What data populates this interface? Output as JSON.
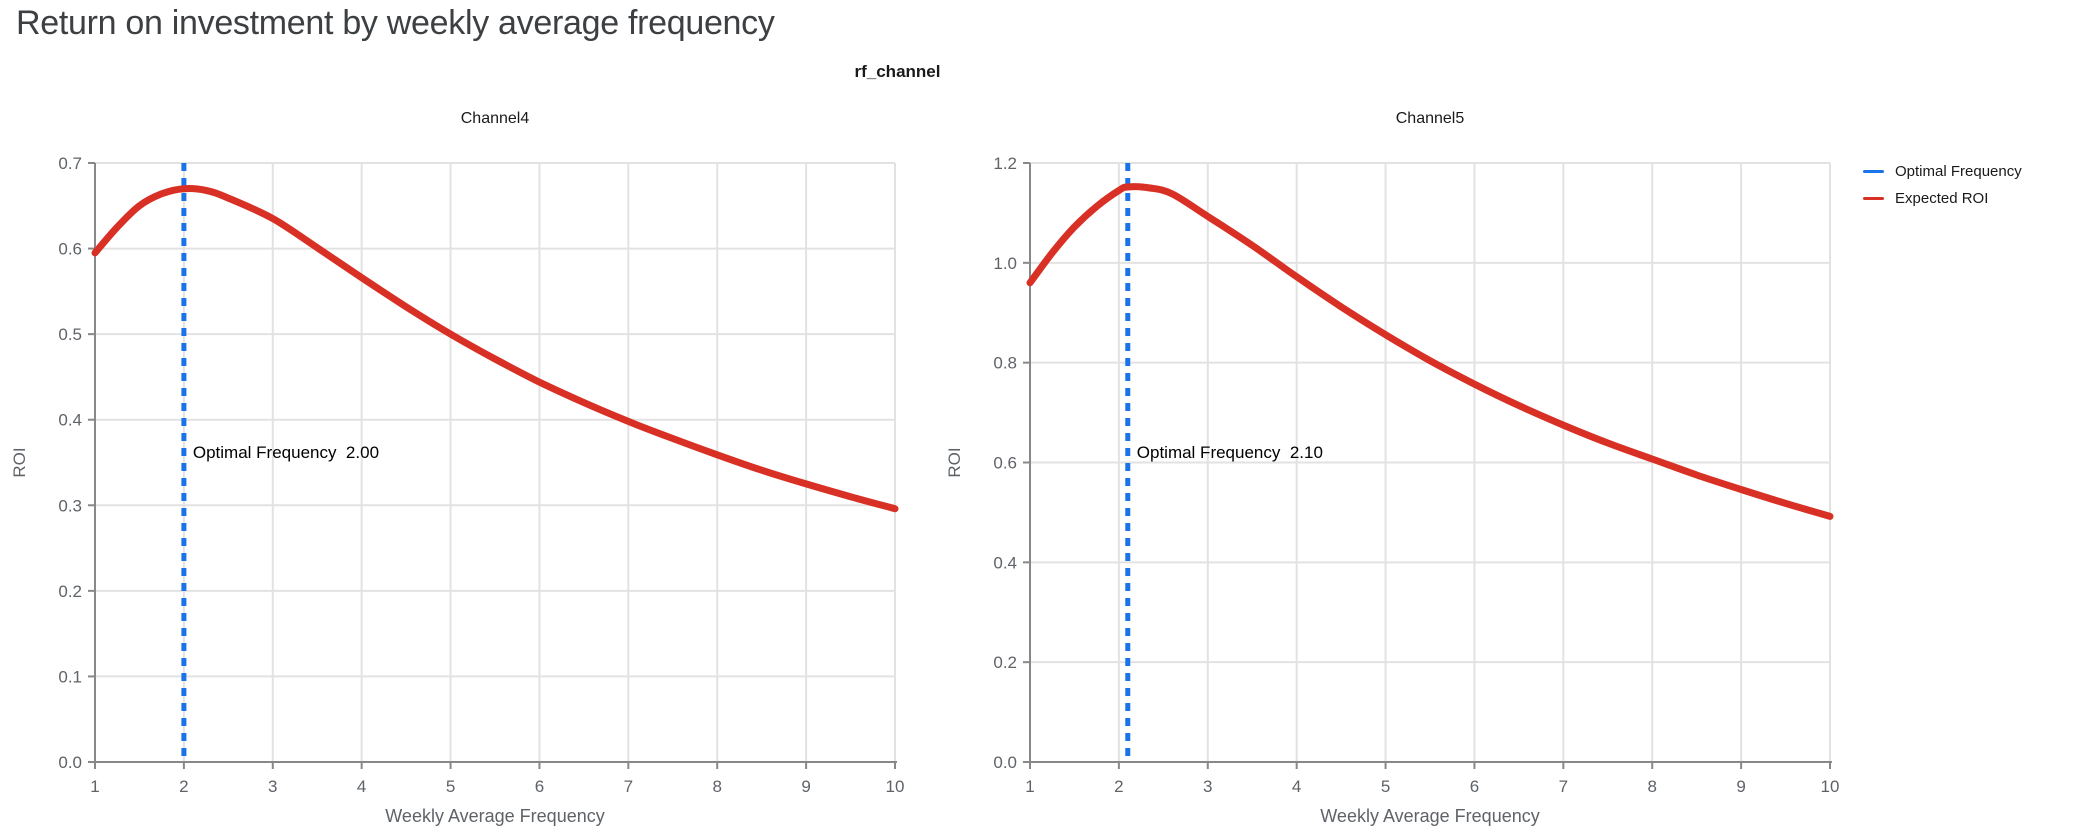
{
  "page": {
    "title": "Return on investment by weekly average frequency"
  },
  "figure": {
    "title": "rf_channel",
    "legend": {
      "items": [
        {
          "label": "Optimal Frequency",
          "color": "#1a73e8"
        },
        {
          "label": "Expected ROI",
          "color": "#d93025"
        }
      ]
    }
  },
  "style": {
    "accent_blue": "#1a73e8",
    "accent_red": "#d93025",
    "page_title_color": "#3c4043",
    "axis_text_color": "#5f6368",
    "axis_line_color": "#888888",
    "grid_color": "#e2e2e2",
    "chart_text_color": "#1a1a1a",
    "annotation_color": "#000000"
  },
  "chart_data": [
    {
      "type": "line",
      "title": "Channel4",
      "xlabel": "Weekly Average Frequency",
      "ylabel": "ROI",
      "xlim": [
        1,
        10
      ],
      "ylim": [
        0,
        0.7
      ],
      "xticks": [
        1,
        2,
        3,
        4,
        5,
        6,
        7,
        8,
        9,
        10
      ],
      "xtick_labels": [
        "1",
        "2",
        "3",
        "4",
        "5",
        "6",
        "7",
        "8",
        "9",
        "10"
      ],
      "yticks": [
        0.0,
        0.1,
        0.2,
        0.3,
        0.4,
        0.5,
        0.6,
        0.7
      ],
      "ytick_labels": [
        "0.0",
        "0.1",
        "0.2",
        "0.3",
        "0.4",
        "0.5",
        "0.6",
        "0.7"
      ],
      "grid": true,
      "legend_position": "top-right-outside",
      "optimal_frequency": 2.0,
      "annotation": "Optimal Frequency  2.00",
      "series": [
        {
          "name": "Expected ROI",
          "x": [
            1,
            1.25,
            1.5,
            1.75,
            2,
            2.25,
            2.5,
            3,
            3.5,
            4,
            4.5,
            5,
            5.5,
            6,
            6.5,
            7,
            7.5,
            8,
            8.5,
            9,
            9.5,
            10
          ],
          "y": [
            0.595,
            0.625,
            0.65,
            0.664,
            0.67,
            0.668,
            0.659,
            0.635,
            0.601,
            0.566,
            0.532,
            0.5,
            0.471,
            0.444,
            0.42,
            0.398,
            0.378,
            0.359,
            0.341,
            0.325,
            0.31,
            0.296
          ]
        }
      ]
    },
    {
      "type": "line",
      "title": "Channel5",
      "xlabel": "Weekly Average Frequency",
      "ylabel": "ROI",
      "xlim": [
        1,
        10
      ],
      "ylim": [
        0,
        1.2
      ],
      "xticks": [
        1,
        2,
        3,
        4,
        5,
        6,
        7,
        8,
        9,
        10
      ],
      "xtick_labels": [
        "1",
        "2",
        "3",
        "4",
        "5",
        "6",
        "7",
        "8",
        "9",
        "10"
      ],
      "yticks": [
        0.0,
        0.2,
        0.4,
        0.6,
        0.8,
        1.0,
        1.2
      ],
      "ytick_labels": [
        "0.0",
        "0.2",
        "0.4",
        "0.6",
        "0.8",
        "1.0",
        "1.2"
      ],
      "grid": true,
      "legend_position": "top-right-outside",
      "optimal_frequency": 2.1,
      "annotation": "Optimal Frequency  2.10",
      "series": [
        {
          "name": "Expected ROI",
          "x": [
            1,
            1.25,
            1.5,
            1.75,
            2,
            2.1,
            2.35,
            2.6,
            3,
            3.5,
            4,
            4.5,
            5,
            5.5,
            6,
            6.5,
            7,
            7.5,
            8,
            8.5,
            9,
            9.5,
            10
          ],
          "y": [
            0.96,
            1.02,
            1.072,
            1.113,
            1.145,
            1.152,
            1.15,
            1.138,
            1.093,
            1.035,
            0.972,
            0.912,
            0.856,
            0.804,
            0.757,
            0.714,
            0.675,
            0.639,
            0.607,
            0.575,
            0.546,
            0.518,
            0.492
          ]
        }
      ]
    }
  ]
}
